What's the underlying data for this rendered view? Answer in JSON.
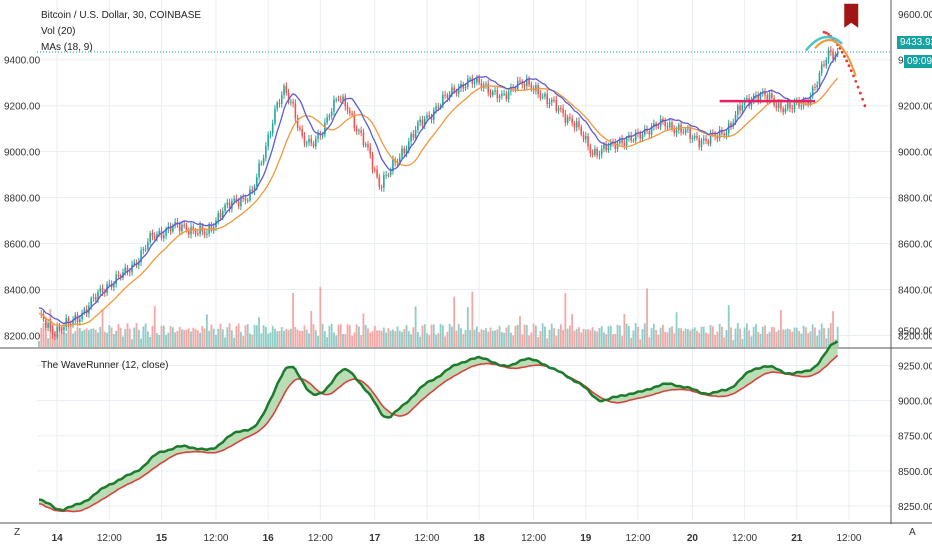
{
  "header": {
    "symbol_line": "Bitcoin / U.S. Dollar, 30, COINBASE",
    "vol_label": "Vol (20)",
    "ma_label": "MAs (18, 9)",
    "indicator_label": "The WaveRunner (12, close)"
  },
  "price_badge": {
    "value": "9433.92",
    "countdown": "09:09"
  },
  "bottom_bar": {
    "left_button": "Z",
    "right_button": "A"
  },
  "colors": {
    "up": "#26a69a",
    "down": "#ef5350",
    "vol_up": "#8fcdc6",
    "vol_down": "#f3a8a6",
    "ma_fast": "#5b5bd6",
    "ma_slow": "#f0993a",
    "wave_fast": "#1e7a2c",
    "wave_slow": "#d8433b",
    "fill_up": "#a8d5a2",
    "fill_down": "#e06666",
    "projection": "#e53935",
    "level_line": "#e91e63",
    "badge_bg": "#17a2a2",
    "grid": "#e8edf2",
    "axis_text": "#333333"
  },
  "chart_data": [
    {
      "type": "candlestick",
      "title": "Bitcoin / U.S. Dollar, 30, COINBASE",
      "ylabel": "",
      "xlabel": "",
      "ylim": [
        8150,
        9660
      ],
      "x_ticks": [
        "14",
        "12:00",
        "15",
        "12:00",
        "16",
        "12:00",
        "17",
        "12:00",
        "18",
        "12:00",
        "19",
        "12:00",
        "20",
        "12:00",
        "21",
        "12:00"
      ],
      "y_ticks_left": [
        "9400.00",
        "9200.00",
        "9000.00",
        "8800.00",
        "8600.00",
        "8400.00",
        "8200.00"
      ],
      "y_ticks_right": [
        "9600.00",
        "9400.00",
        "9200.00",
        "9000.00",
        "8800.00",
        "8600.00",
        "8400.00",
        "8200.00"
      ],
      "last_price": 9433.92,
      "close_keypoints": [
        [
          0,
          8280
        ],
        [
          6,
          8220
        ],
        [
          14,
          8250
        ],
        [
          22,
          8330
        ],
        [
          30,
          8420
        ],
        [
          38,
          8470
        ],
        [
          44,
          8540
        ],
        [
          50,
          8630
        ],
        [
          58,
          8670
        ],
        [
          66,
          8670
        ],
        [
          70,
          8650
        ],
        [
          74,
          8640
        ],
        [
          80,
          8740
        ],
        [
          88,
          8790
        ],
        [
          94,
          8820
        ],
        [
          98,
          8950
        ],
        [
          104,
          9180
        ],
        [
          108,
          9260
        ],
        [
          112,
          9200
        ],
        [
          116,
          9060
        ],
        [
          120,
          9020
        ],
        [
          124,
          9080
        ],
        [
          128,
          9170
        ],
        [
          132,
          9230
        ],
        [
          136,
          9200
        ],
        [
          140,
          9100
        ],
        [
          146,
          8980
        ],
        [
          150,
          8860
        ],
        [
          154,
          8900
        ],
        [
          160,
          9000
        ],
        [
          168,
          9120
        ],
        [
          176,
          9200
        ],
        [
          184,
          9280
        ],
        [
          190,
          9300
        ],
        [
          196,
          9300
        ],
        [
          200,
          9250
        ],
        [
          204,
          9230
        ],
        [
          210,
          9300
        ],
        [
          214,
          9290
        ],
        [
          220,
          9270
        ],
        [
          224,
          9220
        ],
        [
          230,
          9180
        ],
        [
          236,
          9120
        ],
        [
          240,
          9060
        ],
        [
          244,
          9000
        ],
        [
          248,
          9000
        ],
        [
          256,
          9050
        ],
        [
          262,
          9050
        ],
        [
          268,
          9100
        ],
        [
          276,
          9120
        ],
        [
          282,
          9100
        ],
        [
          288,
          9060
        ],
        [
          294,
          9050
        ],
        [
          300,
          9070
        ],
        [
          304,
          9110
        ],
        [
          310,
          9200
        ],
        [
          316,
          9250
        ],
        [
          320,
          9240
        ],
        [
          326,
          9200
        ],
        [
          332,
          9190
        ],
        [
          338,
          9220
        ],
        [
          343,
          9300
        ],
        [
          348,
          9430
        ],
        [
          352,
          9433.92
        ]
      ],
      "ma_fast_period": 18,
      "ma_slow_period": 9,
      "level_line": {
        "value": 9220,
        "from_bar": 300,
        "to_bar": 342
      },
      "projection": {
        "peak": 9520,
        "end": 9200,
        "start_bar": 346,
        "end_bar": 364
      },
      "flag_marker": {
        "bar": 358,
        "value": 9600
      }
    },
    {
      "type": "bar",
      "title": "Vol (20)",
      "ylabel": "",
      "ylim": [
        0,
        6
      ]
    },
    {
      "type": "line",
      "title": "The WaveRunner (12, close)",
      "ylim": [
        8150,
        9360
      ],
      "y_ticks": [
        "9500.00",
        "9250.00",
        "9000.00",
        "8750.00",
        "8500.00",
        "8250.00"
      ],
      "series_names": []
    }
  ]
}
